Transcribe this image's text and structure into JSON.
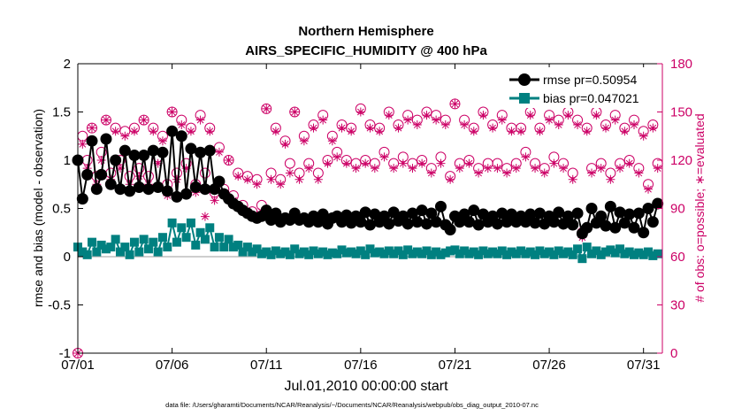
{
  "chart_data": {
    "type": "line",
    "title": [
      "Northern Hemisphere",
      "AIRS_SPECIFIC_HUMIDITY @ 400 hPa"
    ],
    "xlabel": "Jul.01,2010 00:00:00 start",
    "ylabel": "rmse and bias (model - observation)",
    "ylabel_right": "# of obs: o=possible; ∗=evaluated",
    "footnote": "data file: /Users/gharamti/Documents/NCAR/Reanalysis/~/Documents/NCAR/Reanalysis/webpub/obs_diag_output_2010-07.nc",
    "xlim": [
      1,
      32
    ],
    "ylim": [
      -1,
      2
    ],
    "ylim_right": [
      0,
      180
    ],
    "xticks": [
      1,
      6,
      11,
      16,
      21,
      26,
      31
    ],
    "xtick_labels": [
      "07/01",
      "07/06",
      "07/11",
      "07/16",
      "07/21",
      "07/26",
      "07/31"
    ],
    "yticks": [
      -1,
      -0.5,
      0,
      0.5,
      1,
      1.5,
      2
    ],
    "ytick_labels": [
      "-1",
      "-0.5",
      "0",
      "0.5",
      "1",
      "1.5",
      "2"
    ],
    "yticks_right": [
      0,
      30,
      60,
      90,
      120,
      150,
      180
    ],
    "ytick_labels_right": [
      "0",
      "30",
      "60",
      "90",
      "120",
      "150",
      "180"
    ],
    "grid": false,
    "legend_position": "top-right",
    "colors": {
      "rmse": "#000000",
      "bias": "#008080",
      "obs": "#cc0066",
      "zero_line": "#b0b0b0"
    },
    "series": [
      {
        "name": "rmse pr=0.50954",
        "marker": "filled-circle",
        "axis": "left",
        "x": [
          1.0,
          1.25,
          1.5,
          1.75,
          2.0,
          2.25,
          2.5,
          2.75,
          3.0,
          3.25,
          3.5,
          3.75,
          4.0,
          4.25,
          4.5,
          4.75,
          5.0,
          5.25,
          5.5,
          5.75,
          6.0,
          6.25,
          6.5,
          6.75,
          7.0,
          7.25,
          7.5,
          7.75,
          8.0,
          8.25,
          8.5,
          8.75,
          9.0,
          9.25,
          9.5,
          9.75,
          10.0,
          10.25,
          10.5,
          10.75,
          11.0,
          11.25,
          11.5,
          11.75,
          12.0,
          12.25,
          12.5,
          12.75,
          13.0,
          13.25,
          13.5,
          13.75,
          14.0,
          14.25,
          14.5,
          14.75,
          15.0,
          15.25,
          15.5,
          15.75,
          16.0,
          16.25,
          16.5,
          16.75,
          17.0,
          17.25,
          17.5,
          17.75,
          18.0,
          18.25,
          18.5,
          18.75,
          19.0,
          19.25,
          19.5,
          19.75,
          20.0,
          20.25,
          20.5,
          20.75,
          21.0,
          21.25,
          21.5,
          21.75,
          22.0,
          22.25,
          22.5,
          22.75,
          23.0,
          23.25,
          23.5,
          23.75,
          24.0,
          24.25,
          24.5,
          24.75,
          25.0,
          25.25,
          25.5,
          25.75,
          26.0,
          26.25,
          26.5,
          26.75,
          27.0,
          27.25,
          27.5,
          27.75,
          28.0,
          28.25,
          28.5,
          28.75,
          29.0,
          29.25,
          29.5,
          29.75,
          30.0,
          30.25,
          30.5,
          30.75,
          31.0,
          31.25,
          31.5,
          31.75
        ],
        "y": [
          1.0,
          0.6,
          0.85,
          1.2,
          0.7,
          0.85,
          1.22,
          0.75,
          1.0,
          0.7,
          1.1,
          0.68,
          1.05,
          0.72,
          1.05,
          0.7,
          1.1,
          0.72,
          1.08,
          0.68,
          1.3,
          0.62,
          1.25,
          0.65,
          1.12,
          0.72,
          1.08,
          0.7,
          1.1,
          0.7,
          0.78,
          0.65,
          0.6,
          0.55,
          0.52,
          0.48,
          0.45,
          0.42,
          0.4,
          0.42,
          0.48,
          0.38,
          0.45,
          0.36,
          0.4,
          0.38,
          0.45,
          0.38,
          0.4,
          0.36,
          0.42,
          0.36,
          0.44,
          0.34,
          0.4,
          0.42,
          0.36,
          0.43,
          0.35,
          0.42,
          0.36,
          0.46,
          0.33,
          0.44,
          0.36,
          0.42,
          0.34,
          0.46,
          0.37,
          0.42,
          0.34,
          0.45,
          0.36,
          0.48,
          0.34,
          0.45,
          0.36,
          0.52,
          0.33,
          0.28,
          0.42,
          0.36,
          0.44,
          0.36,
          0.48,
          0.33,
          0.44,
          0.36,
          0.42,
          0.34,
          0.45,
          0.36,
          0.44,
          0.36,
          0.42,
          0.36,
          0.44,
          0.35,
          0.45,
          0.34,
          0.42,
          0.36,
          0.46,
          0.34,
          0.42,
          0.33,
          0.45,
          0.24,
          0.3,
          0.5,
          0.35,
          0.42,
          0.32,
          0.52,
          0.3,
          0.46,
          0.35,
          0.44,
          0.3,
          0.45,
          0.25,
          0.5,
          0.36,
          0.55
        ]
      },
      {
        "name": "bias pr=0.047021",
        "marker": "filled-square",
        "axis": "left",
        "x": [
          1.0,
          1.25,
          1.5,
          1.75,
          2.0,
          2.25,
          2.5,
          2.75,
          3.0,
          3.25,
          3.5,
          3.75,
          4.0,
          4.25,
          4.5,
          4.75,
          5.0,
          5.25,
          5.5,
          5.75,
          6.0,
          6.25,
          6.5,
          6.75,
          7.0,
          7.25,
          7.5,
          7.75,
          8.0,
          8.25,
          8.5,
          8.75,
          9.0,
          9.25,
          9.5,
          9.75,
          10.0,
          10.25,
          10.5,
          10.75,
          11.0,
          11.25,
          11.5,
          11.75,
          12.0,
          12.25,
          12.5,
          12.75,
          13.0,
          13.25,
          13.5,
          13.75,
          14.0,
          14.25,
          14.5,
          14.75,
          15.0,
          15.25,
          15.5,
          15.75,
          16.0,
          16.25,
          16.5,
          16.75,
          17.0,
          17.25,
          17.5,
          17.75,
          18.0,
          18.25,
          18.5,
          18.75,
          19.0,
          19.25,
          19.5,
          19.75,
          20.0,
          20.25,
          20.5,
          20.75,
          21.0,
          21.25,
          21.5,
          21.75,
          22.0,
          22.25,
          22.5,
          22.75,
          23.0,
          23.25,
          23.5,
          23.75,
          24.0,
          24.25,
          24.5,
          24.75,
          25.0,
          25.25,
          25.5,
          25.75,
          26.0,
          26.25,
          26.5,
          26.75,
          27.0,
          27.25,
          27.5,
          27.75,
          28.0,
          28.25,
          28.5,
          28.75,
          29.0,
          29.25,
          29.5,
          29.75,
          30.0,
          30.25,
          30.5,
          30.75,
          31.0,
          31.25,
          31.5,
          31.75
        ],
        "y": [
          0.1,
          0.05,
          0.02,
          0.15,
          0.05,
          0.12,
          0.08,
          0.1,
          0.18,
          0.05,
          0.1,
          0.02,
          0.15,
          0.05,
          0.18,
          0.08,
          0.15,
          0.05,
          0.2,
          0.1,
          0.35,
          0.15,
          0.3,
          0.2,
          0.35,
          0.12,
          0.25,
          0.18,
          0.3,
          0.1,
          0.2,
          0.1,
          0.18,
          0.1,
          0.12,
          0.05,
          0.1,
          0.05,
          0.08,
          0.03,
          0.05,
          0.02,
          0.06,
          0.03,
          0.05,
          0.02,
          0.08,
          0.03,
          0.05,
          0.02,
          0.06,
          0.03,
          0.05,
          0.02,
          0.04,
          0.03,
          0.07,
          0.04,
          0.05,
          0.03,
          0.06,
          0.02,
          0.08,
          0.04,
          0.05,
          0.03,
          0.06,
          0.03,
          0.06,
          0.02,
          0.07,
          0.03,
          0.05,
          0.03,
          0.06,
          0.02,
          0.05,
          0.02,
          0.04,
          0.06,
          0.07,
          0.03,
          0.06,
          0.03,
          0.05,
          0.02,
          0.06,
          0.03,
          0.05,
          0.03,
          0.06,
          0.02,
          0.05,
          0.03,
          0.06,
          0.03,
          0.05,
          0.02,
          0.06,
          0.03,
          0.05,
          0.02,
          0.06,
          0.03,
          0.05,
          0.02,
          0.08,
          -0.02,
          0.1,
          0.03,
          0.06,
          0.02,
          0.05,
          0.07,
          0.04,
          0.08,
          0.03,
          0.05,
          0.02,
          0.04,
          0.02,
          0.05,
          0.01,
          0.03
        ]
      },
      {
        "name": "possible",
        "marker": "open-circle",
        "axis": "right",
        "x": [
          1.0,
          1.25,
          1.5,
          1.75,
          2.0,
          2.25,
          2.5,
          2.75,
          3.0,
          3.25,
          3.5,
          3.75,
          4.0,
          4.25,
          4.5,
          4.75,
          5.0,
          5.25,
          5.5,
          5.75,
          6.0,
          6.25,
          6.5,
          6.75,
          7.0,
          7.25,
          7.5,
          7.75,
          8.0,
          8.25,
          8.5,
          8.75,
          9.0,
          9.25,
          9.5,
          9.75,
          10.0,
          10.25,
          10.5,
          10.75,
          11.0,
          11.25,
          11.5,
          11.75,
          12.0,
          12.25,
          12.5,
          12.75,
          13.0,
          13.25,
          13.5,
          13.75,
          14.0,
          14.25,
          14.5,
          14.75,
          15.0,
          15.25,
          15.5,
          15.75,
          16.0,
          16.25,
          16.5,
          16.75,
          17.0,
          17.25,
          17.5,
          17.75,
          18.0,
          18.25,
          18.5,
          18.75,
          19.0,
          19.25,
          19.5,
          19.75,
          20.0,
          20.25,
          20.5,
          20.75,
          21.0,
          21.25,
          21.5,
          21.75,
          22.0,
          22.25,
          22.5,
          22.75,
          23.0,
          23.25,
          23.5,
          23.75,
          24.0,
          24.25,
          24.5,
          24.75,
          25.0,
          25.25,
          25.5,
          25.75,
          26.0,
          26.25,
          26.5,
          26.75,
          27.0,
          27.25,
          27.5,
          27.75,
          28.0,
          28.25,
          28.5,
          28.75,
          29.0,
          29.25,
          29.5,
          29.75,
          30.0,
          30.25,
          30.5,
          30.75,
          31.0,
          31.25,
          31.5,
          31.75
        ],
        "y": [
          0,
          135,
          120,
          140,
          110,
          125,
          145,
          112,
          140,
          120,
          138,
          110,
          140,
          115,
          145,
          110,
          140,
          122,
          135,
          105,
          150,
          112,
          145,
          118,
          140,
          105,
          148,
          112,
          140,
          100,
          128,
          102,
          120,
          98,
          112,
          92,
          110,
          88,
          108,
          92,
          152,
          112,
          140,
          108,
          132,
          118,
          150,
          112,
          135,
          118,
          142,
          112,
          148,
          120,
          135,
          125,
          142,
          120,
          140,
          118,
          152,
          120,
          142,
          118,
          140,
          125,
          150,
          118,
          142,
          122,
          148,
          118,
          145,
          120,
          150,
          115,
          148,
          122,
          145,
          110,
          155,
          118,
          145,
          120,
          140,
          115,
          150,
          118,
          142,
          118,
          148,
          115,
          140,
          118,
          140,
          125,
          150,
          118,
          140,
          115,
          148,
          122,
          145,
          118,
          150,
          112,
          145,
          75,
          140,
          115,
          150,
          118,
          142,
          112,
          148,
          118,
          140,
          120,
          145,
          115,
          138,
          105,
          142,
          118
        ]
      },
      {
        "name": "evaluated",
        "marker": "star",
        "axis": "right",
        "x": [
          1.0,
          1.25,
          1.5,
          1.75,
          2.0,
          2.25,
          2.5,
          2.75,
          3.0,
          3.25,
          3.5,
          3.75,
          4.0,
          4.25,
          4.5,
          4.75,
          5.0,
          5.25,
          5.5,
          5.75,
          6.0,
          6.25,
          6.5,
          6.75,
          7.0,
          7.25,
          7.5,
          7.75,
          8.0,
          8.25,
          8.5,
          8.75,
          9.0,
          9.25,
          9.5,
          9.75,
          10.0,
          10.25,
          10.5,
          10.75,
          11.0,
          11.25,
          11.5,
          11.75,
          12.0,
          12.25,
          12.5,
          12.75,
          13.0,
          13.25,
          13.5,
          13.75,
          14.0,
          14.25,
          14.5,
          14.75,
          15.0,
          15.25,
          15.5,
          15.75,
          16.0,
          16.25,
          16.5,
          16.75,
          17.0,
          17.25,
          17.5,
          17.75,
          18.0,
          18.25,
          18.5,
          18.75,
          19.0,
          19.25,
          19.5,
          19.75,
          20.0,
          20.25,
          20.5,
          20.75,
          21.0,
          21.25,
          21.5,
          21.75,
          22.0,
          22.25,
          22.5,
          22.75,
          23.0,
          23.25,
          23.5,
          23.75,
          24.0,
          24.25,
          24.5,
          24.75,
          25.0,
          25.25,
          25.5,
          25.75,
          26.0,
          26.25,
          26.5,
          26.75,
          27.0,
          27.25,
          27.5,
          27.75,
          28.0,
          28.25,
          28.5,
          28.75,
          29.0,
          29.25,
          29.5,
          29.75,
          30.0,
          30.25,
          30.5,
          30.75,
          31.0,
          31.25,
          31.5,
          31.75
        ],
        "y": [
          0,
          130,
          115,
          140,
          105,
          120,
          145,
          108,
          138,
          115,
          135,
          105,
          138,
          110,
          145,
          105,
          138,
          118,
          132,
          98,
          150,
          108,
          142,
          115,
          138,
          100,
          145,
          85,
          138,
          95,
          125,
          98,
          120,
          95,
          110,
          88,
          108,
          85,
          105,
          88,
          152,
          108,
          138,
          105,
          130,
          112,
          150,
          108,
          132,
          115,
          140,
          108,
          145,
          118,
          132,
          122,
          140,
          118,
          138,
          115,
          150,
          118,
          140,
          115,
          138,
          122,
          148,
          115,
          140,
          118,
          145,
          115,
          142,
          118,
          148,
          112,
          145,
          118,
          142,
          108,
          155,
          115,
          142,
          118,
          138,
          112,
          148,
          115,
          140,
          115,
          145,
          112,
          138,
          115,
          138,
          122,
          148,
          115,
          138,
          112,
          145,
          118,
          142,
          115,
          148,
          108,
          142,
          72,
          138,
          112,
          148,
          115,
          140,
          108,
          145,
          115,
          138,
          118,
          142,
          112,
          135,
          102,
          140,
          115
        ]
      }
    ]
  }
}
